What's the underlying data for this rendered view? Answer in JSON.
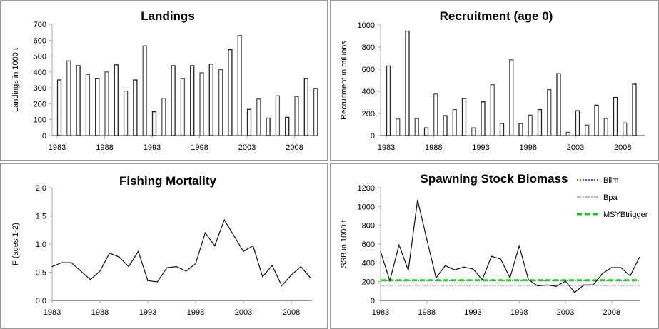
{
  "chart_data": [
    {
      "type": "bar",
      "title": "Landings",
      "ylabel": "Landings in 1000 t",
      "xlabel": "",
      "ylim": [
        0,
        700
      ],
      "yticks": [
        0,
        100,
        200,
        300,
        400,
        500,
        600,
        700
      ],
      "xticks": [
        "1983",
        "1988",
        "1993",
        "1998",
        "2003",
        "2008"
      ],
      "x_start": 1983,
      "values": [
        350,
        470,
        440,
        385,
        360,
        400,
        445,
        280,
        350,
        565,
        150,
        235,
        440,
        360,
        440,
        395,
        450,
        415,
        540,
        630,
        165,
        230,
        110,
        250,
        115,
        245,
        360,
        295
      ]
    },
    {
      "type": "bar",
      "title": "Recruitment (age 0)",
      "ylabel": "Recruitment in millions",
      "xlabel": "",
      "ylim": [
        0,
        1000
      ],
      "yticks": [
        0,
        200,
        400,
        600,
        800,
        1000
      ],
      "xticks": [
        "1983",
        "1988",
        "1993",
        "1998",
        "2003",
        "2008"
      ],
      "x_start": 1983,
      "values": [
        630,
        150,
        945,
        155,
        70,
        375,
        180,
        235,
        335,
        70,
        305,
        460,
        110,
        685,
        110,
        185,
        235,
        415,
        560,
        30,
        225,
        95,
        275,
        155,
        345,
        115,
        465
      ]
    },
    {
      "type": "line",
      "title": "Fishing Mortality",
      "ylabel": "F (ages 1-2)",
      "xlabel": "",
      "ylim": [
        0,
        2
      ],
      "yticks": [
        "0.0",
        "0.5",
        "1.0",
        "1.5",
        "2.0"
      ],
      "xticks": [
        "1983",
        "1988",
        "1993",
        "1998",
        "2003",
        "2008"
      ],
      "x_start": 1983,
      "values": [
        0.6,
        0.67,
        0.67,
        0.52,
        0.37,
        0.52,
        0.84,
        0.77,
        0.6,
        0.87,
        0.35,
        0.33,
        0.58,
        0.6,
        0.52,
        0.65,
        1.2,
        0.97,
        1.43,
        1.15,
        0.87,
        0.97,
        0.42,
        0.62,
        0.26,
        0.45,
        0.6,
        0.4
      ]
    },
    {
      "type": "line",
      "title": "Spawning Stock Biomass",
      "ylabel": "SSB in 1000 t",
      "xlabel": "",
      "ylim": [
        0,
        1200
      ],
      "yticks": [
        0,
        200,
        400,
        600,
        800,
        1000,
        1200
      ],
      "xticks": [
        "1983",
        "1988",
        "1993",
        "1998",
        "2003",
        "2008"
      ],
      "x_start": 1983,
      "values": [
        520,
        210,
        590,
        320,
        1070,
        650,
        240,
        370,
        325,
        355,
        335,
        220,
        470,
        440,
        240,
        580,
        220,
        155,
        165,
        150,
        205,
        85,
        165,
        165,
        285,
        350,
        350,
        260,
        460
      ],
      "reference_lines": [
        {
          "name": "Blim",
          "value": 215,
          "color": "#1a1aff",
          "style": "dotted"
        },
        {
          "name": "Bpa",
          "value": 160,
          "color": "#9999ff",
          "style": "dashdot"
        },
        {
          "name": "MSYBtrigger",
          "value": 215,
          "color": "#22cc22",
          "style": "dashed"
        }
      ],
      "legend": "top-right"
    }
  ]
}
